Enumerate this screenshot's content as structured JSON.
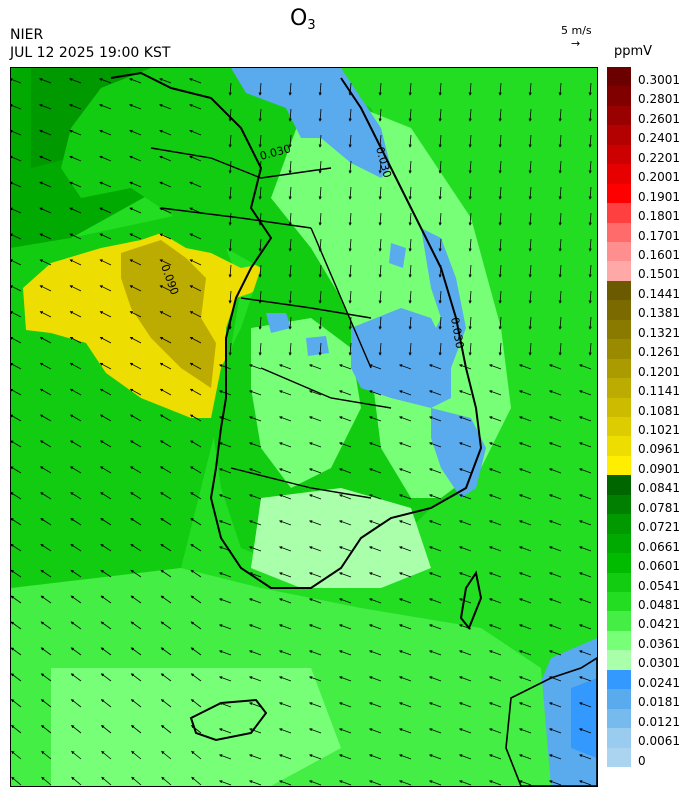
{
  "header": {
    "title_main": "O",
    "title_sub": "3",
    "agency": "NIER",
    "datetime": "JUL 12 2025 19:00 KST",
    "wind_scale": "5 m/s",
    "unit": "ppmV"
  },
  "map": {
    "contour_labels": [
      "0.030",
      "0.030",
      "0.030",
      "0.090"
    ]
  },
  "colorbar": {
    "labels": [
      "0.3001",
      "0.2801",
      "0.2601",
      "0.2401",
      "0.2201",
      "0.2001",
      "0.1901",
      "0.1801",
      "0.1701",
      "0.1601",
      "0.1501",
      "0.1441",
      "0.1381",
      "0.1321",
      "0.1261",
      "0.1201",
      "0.1141",
      "0.1081",
      "0.1021",
      "0.0961",
      "0.0901",
      "0.0841",
      "0.0781",
      "0.0721",
      "0.0661",
      "0.0601",
      "0.0541",
      "0.0481",
      "0.0421",
      "0.0361",
      "0.0301",
      "0.0241",
      "0.0181",
      "0.0121",
      "0.0061",
      "0"
    ],
    "colors": [
      "#6b0000",
      "#800000",
      "#990000",
      "#b30000",
      "#cc0000",
      "#e60000",
      "#ff0000",
      "#ff4040",
      "#ff6a6a",
      "#ff8f8f",
      "#ffa8a8",
      "#6b5a00",
      "#7a6a00",
      "#8a7a00",
      "#9a8a00",
      "#ab9a00",
      "#bcab00",
      "#cdbb00",
      "#ddcc00",
      "#eedd00",
      "#ffee00",
      "#006600",
      "#007f00",
      "#009900",
      "#00aa00",
      "#00bb00",
      "#11cc11",
      "#22dd22",
      "#44ee44",
      "#77ff77",
      "#aaffaa",
      "#3399ff",
      "#5aaaee",
      "#77bbee",
      "#99ccee",
      "#aad4f0"
    ]
  }
}
